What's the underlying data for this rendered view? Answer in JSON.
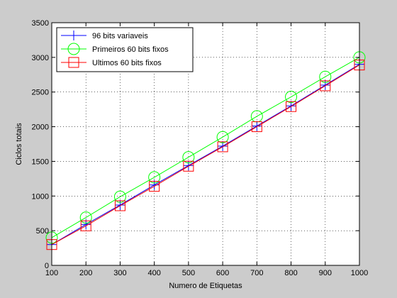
{
  "chart_data": {
    "type": "line",
    "title": "",
    "xlabel": "Numero de Etiquetas",
    "ylabel": "Ciclos totais",
    "x": [
      100,
      200,
      300,
      400,
      500,
      600,
      700,
      800,
      900,
      1000
    ],
    "xlim": [
      100,
      1000
    ],
    "ylim": [
      0,
      3500
    ],
    "xticks": [
      "100",
      "200",
      "300",
      "400",
      "500",
      "600",
      "700",
      "800",
      "900",
      "1000"
    ],
    "yticks": [
      "0",
      "500",
      "1000",
      "1500",
      "2000",
      "2500",
      "3000",
      "3500"
    ],
    "grid": true,
    "legend_position": "top-left",
    "series": [
      {
        "name": "96 bits variaveis",
        "color": "#0000ff",
        "marker": "plus",
        "values": [
          300,
          590,
          870,
          1160,
          1440,
          1720,
          2010,
          2300,
          2600,
          2900
        ]
      },
      {
        "name": "Primeiros 60 bits fixos",
        "color": "#00ff00",
        "marker": "circle",
        "values": [
          400,
          690,
          990,
          1270,
          1560,
          1850,
          2150,
          2430,
          2720,
          3000
        ]
      },
      {
        "name": "Ultimos 60 bits fixos",
        "color": "#ff0000",
        "marker": "square",
        "values": [
          300,
          570,
          860,
          1140,
          1430,
          1710,
          2000,
          2290,
          2590,
          2890
        ]
      }
    ]
  }
}
